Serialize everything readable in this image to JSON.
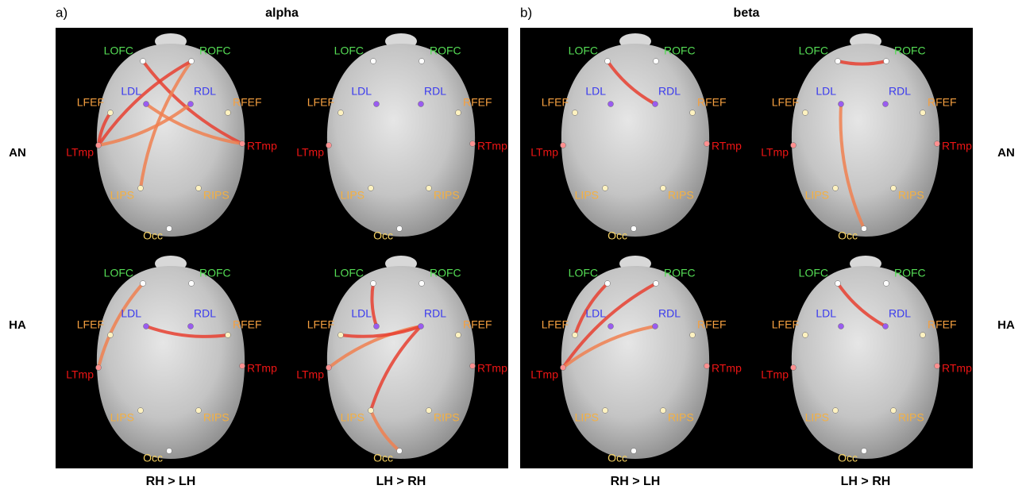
{
  "panels": [
    {
      "letter": "a)",
      "title": "alpha"
    },
    {
      "letter": "b)",
      "title": "beta"
    }
  ],
  "rows": [
    "AN",
    "HA"
  ],
  "columns": [
    "RH > LH",
    "LH > RH"
  ],
  "nodes": [
    "LOFC",
    "ROFC",
    "LDL",
    "RDL",
    "LFEF",
    "RFEF",
    "LTmp",
    "RTmp",
    "LIPS",
    "RIPS",
    "Occ"
  ]
}
